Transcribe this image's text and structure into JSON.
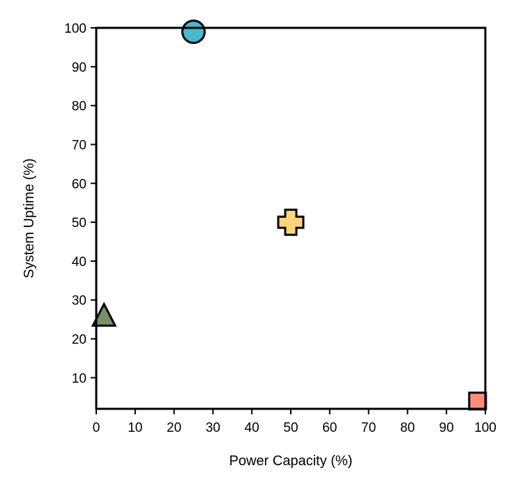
{
  "chart_data": {
    "type": "scatter",
    "title": "",
    "xlabel": "Power Capacity (%)",
    "ylabel": "System Uptime (%)",
    "xlim": [
      0,
      100
    ],
    "ylim": [
      2,
      100
    ],
    "xticks": [
      0,
      10,
      20,
      30,
      40,
      50,
      60,
      70,
      80,
      90,
      100
    ],
    "yticks": [
      10,
      20,
      30,
      40,
      50,
      60,
      70,
      80,
      90,
      100
    ],
    "grid": false,
    "points": [
      {
        "x": 25,
        "y": 99,
        "marker": "circle",
        "color": "#4bb8cc"
      },
      {
        "x": 50,
        "y": 50,
        "marker": "plus",
        "color": "#fed57f"
      },
      {
        "x": 2,
        "y": 25,
        "marker": "triangle",
        "color": "#798e6a"
      },
      {
        "x": 98,
        "y": 4,
        "marker": "square",
        "color": "#fc8d7c"
      }
    ]
  }
}
